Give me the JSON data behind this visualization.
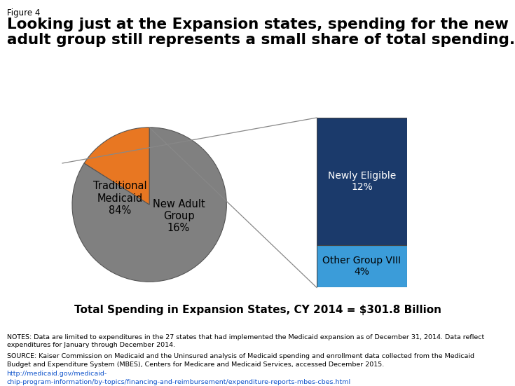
{
  "figure_label": "Figure 4",
  "title": "Looking just at the Expansion states, spending for the new\nadult group still represents a small share of total spending.",
  "pie_values": [
    84,
    16
  ],
  "pie_colors": [
    "#808080",
    "#E87722"
  ],
  "pie_startangle": 90,
  "pie_label_traditional": "Traditional\nMedicaid\n84%",
  "pie_label_new_adult": "New Adult\nGroup\n16%",
  "bar_values": [
    12,
    4
  ],
  "bar_labels": [
    "Newly Eligible\n12%",
    "Other Group VIII\n4%"
  ],
  "bar_colors": [
    "#1B3A6B",
    "#3B9CD9"
  ],
  "bar_label_colors": [
    "white",
    "black"
  ],
  "caption": "Total Spending in Expansion States, CY 2014 = $301.8 Billion",
  "notes_text": "NOTES: Data are limited to expenditures in the 27 states that had implemented the Medicaid expansion as of December 31, 2014. Data reflect\nexpenditures for January through December 2014.",
  "source_text": "SOURCE: Kaiser Commission on Medicaid and the Uninsured analysis of Medicaid spending and enrollment data collected from the Medicaid\nBudget and Expenditure System (MBES), Centers for Medicare and Medicaid Services, accessed December 2015. ",
  "source_link": "http://medicaid.gov/medicaid-\nchip-program-information/by-topics/financing-and-reimbursement/expenditure-reports-mbes-cbes.html",
  "logo_color": "#1B3A6B",
  "background_color": "#FFFFFF",
  "line_color": "#888888"
}
